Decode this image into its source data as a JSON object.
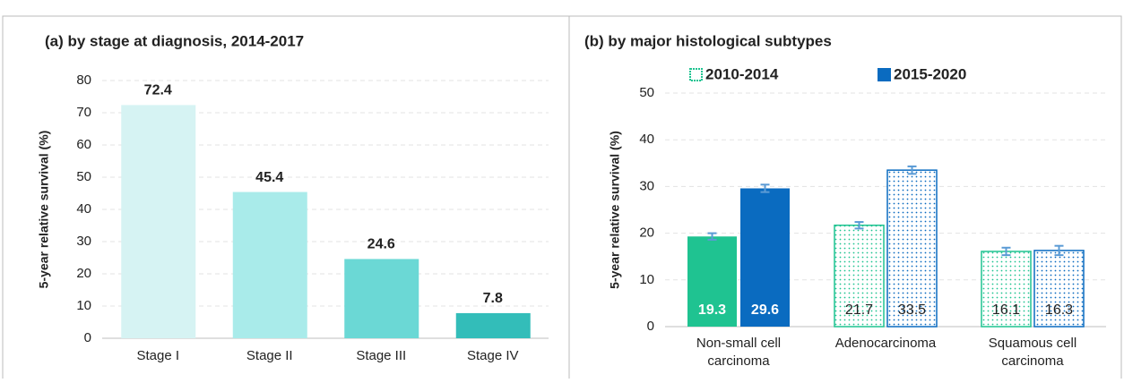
{
  "chart_data": [
    {
      "type": "bar",
      "title": "(a)  by stage at diagnosis, 2014-2017",
      "y_label": "5-year relative survival (%)",
      "categories": [
        "Stage I",
        "Stage II",
        "Stage III",
        "Stage IV"
      ],
      "values": [
        72.4,
        45.4,
        24.6,
        7.8
      ],
      "colors": [
        "#d6f3f3",
        "#a9ebea",
        "#6bd8d5",
        "#33bdb9"
      ],
      "ylim": [
        0,
        80
      ],
      "yticks": [
        0,
        10,
        20,
        30,
        40,
        50,
        60,
        70,
        80
      ],
      "grid": true
    },
    {
      "type": "grouped_bar",
      "title": "(b)  by major histological subtypes",
      "y_label": "5-year relative survival (%)",
      "categories": [
        "Non-small cell carcinoma",
        "Adenocarcinoma",
        "Squamous cell carcinoma"
      ],
      "fill_styles": [
        "solid",
        "dotted",
        "dotted"
      ],
      "series": [
        {
          "name": "2010-2014",
          "color": "#1fc391",
          "values": [
            19.3,
            21.7,
            16.1
          ],
          "errors": [
            0.7,
            0.7,
            0.8
          ]
        },
        {
          "name": "2015-2020",
          "color": "#0a6bc0",
          "values": [
            29.6,
            33.5,
            16.3
          ],
          "errors": [
            0.8,
            0.8,
            1.0
          ]
        }
      ],
      "error_color": "#5b9bd5",
      "ylim": [
        0,
        50
      ],
      "yticks": [
        0,
        10,
        20,
        30,
        40,
        50
      ],
      "grid": true
    }
  ]
}
